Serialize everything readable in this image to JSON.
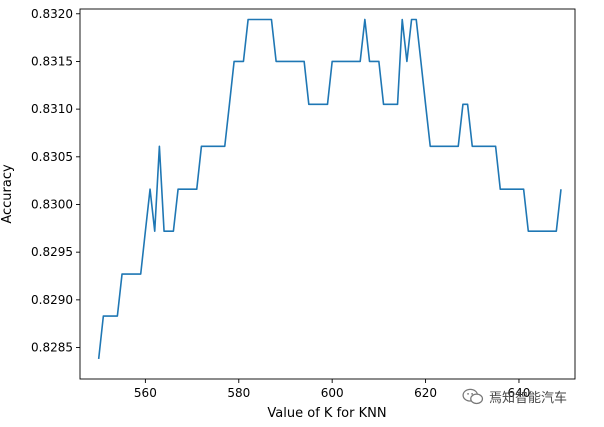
{
  "chart_data": {
    "type": "line",
    "xlabel": "Value of K for KNN",
    "ylabel": "Accuracy",
    "xlim": [
      546,
      652
    ],
    "ylim": [
      0.82817,
      0.83205
    ],
    "x_ticks": [
      "560",
      "580",
      "600",
      "620",
      "640"
    ],
    "x_tick_values": [
      560,
      580,
      600,
      620,
      640
    ],
    "y_ticks": [
      "0.8285",
      "0.8290",
      "0.8295",
      "0.8300",
      "0.8305",
      "0.8310",
      "0.8315",
      "0.8320"
    ],
    "y_tick_values": [
      0.8285,
      0.829,
      0.8295,
      0.83,
      0.8305,
      0.831,
      0.8315,
      0.832
    ],
    "grid": false,
    "series": [
      {
        "color": "#1f77b4",
        "x": [
          550,
          551,
          552,
          553,
          554,
          555,
          556,
          557,
          558,
          559,
          560,
          561,
          562,
          563,
          564,
          565,
          566,
          567,
          568,
          569,
          570,
          571,
          572,
          573,
          574,
          575,
          576,
          577,
          578,
          579,
          580,
          581,
          582,
          583,
          584,
          585,
          586,
          587,
          588,
          589,
          590,
          591,
          592,
          593,
          594,
          595,
          596,
          597,
          598,
          599,
          600,
          601,
          602,
          603,
          604,
          605,
          606,
          607,
          608,
          609,
          610,
          611,
          612,
          613,
          614,
          615,
          616,
          617,
          618,
          619,
          620,
          621,
          622,
          623,
          624,
          625,
          626,
          627,
          628,
          629,
          630,
          631,
          632,
          633,
          634,
          635,
          636,
          637,
          638,
          639,
          640,
          641,
          642,
          643,
          644,
          645,
          646,
          647,
          648,
          649
        ],
        "y": [
          0.82838,
          0.82883,
          0.82883,
          0.82883,
          0.82883,
          0.82927,
          0.82927,
          0.82927,
          0.82927,
          0.82927,
          0.82972,
          0.83016,
          0.82972,
          0.83061,
          0.82972,
          0.82972,
          0.82972,
          0.83016,
          0.83016,
          0.83016,
          0.83016,
          0.83016,
          0.83061,
          0.83061,
          0.83061,
          0.83061,
          0.83061,
          0.83061,
          0.83105,
          0.8315,
          0.8315,
          0.8315,
          0.83194,
          0.83194,
          0.83194,
          0.83194,
          0.83194,
          0.83194,
          0.8315,
          0.8315,
          0.8315,
          0.8315,
          0.8315,
          0.8315,
          0.8315,
          0.83105,
          0.83105,
          0.83105,
          0.83105,
          0.83105,
          0.8315,
          0.8315,
          0.8315,
          0.8315,
          0.8315,
          0.8315,
          0.8315,
          0.83194,
          0.8315,
          0.8315,
          0.8315,
          0.83105,
          0.83105,
          0.83105,
          0.83105,
          0.83194,
          0.8315,
          0.83194,
          0.83194,
          0.8315,
          0.83105,
          0.83061,
          0.83061,
          0.83061,
          0.83061,
          0.83061,
          0.83061,
          0.83061,
          0.83105,
          0.83105,
          0.83061,
          0.83061,
          0.83061,
          0.83061,
          0.83061,
          0.83061,
          0.83016,
          0.83016,
          0.83016,
          0.83016,
          0.83016,
          0.83016,
          0.82972,
          0.82972,
          0.82972,
          0.82972,
          0.82972,
          0.82972,
          0.82972,
          0.83016
        ]
      }
    ]
  },
  "watermark": {
    "text": "焉知智能汽车",
    "icon": "wechat-icon"
  }
}
